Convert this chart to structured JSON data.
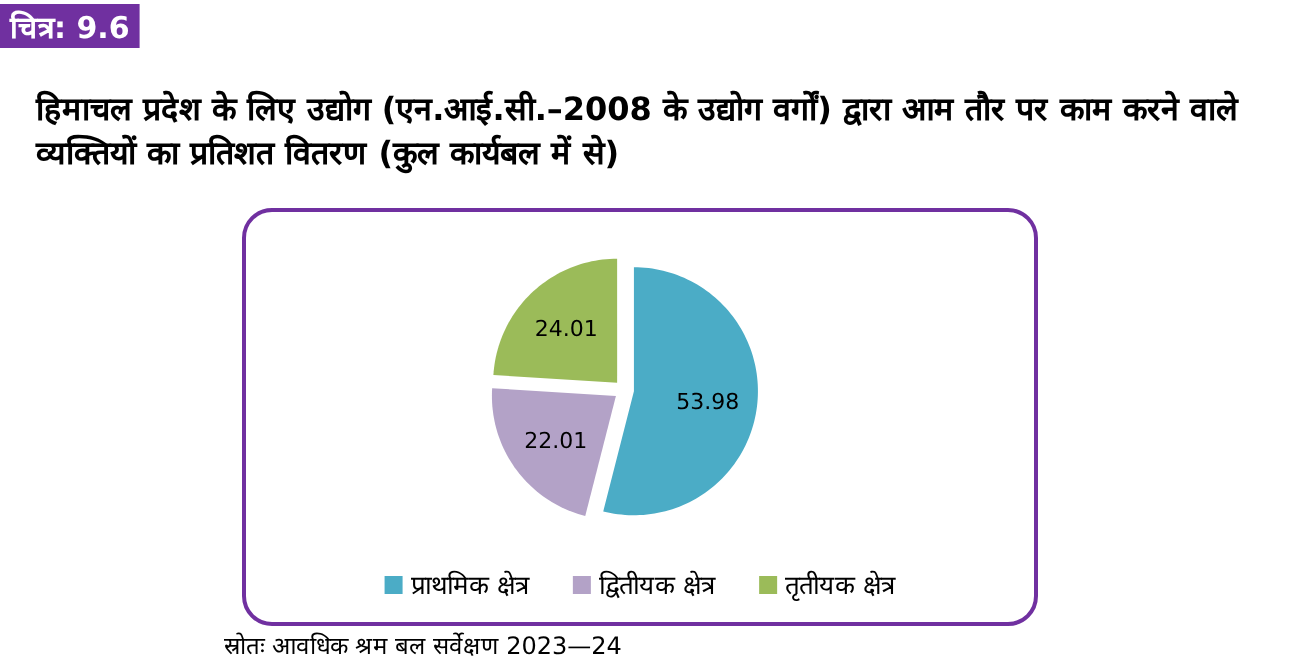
{
  "chart_data": {
    "type": "pie",
    "title": "चित्र: 9.6",
    "subtitle": "हिमाचल प्रदेश के लिए उद्योग (एन.आई.सी.–2008 के उद्योग वर्गों) द्वारा आम तौर पर काम करने वाले व्यक्तियों का प्रतिशत वितरण (कुल कार्यबल में से)",
    "categories": [
      "प्राथमिक क्षेत्र",
      "द्वितीयक क्षेत्र",
      "तृतीयक क्षेत्र"
    ],
    "values": [
      53.98,
      22.01,
      24.01
    ],
    "colors": [
      "#4bacc6",
      "#b3a2c7",
      "#9bbb59"
    ],
    "data_labels": true,
    "legend": "bottom",
    "annotations": [
      "स्रोतः आवधिक श्रम बल सर्वेक्षण 2023—24"
    ]
  }
}
